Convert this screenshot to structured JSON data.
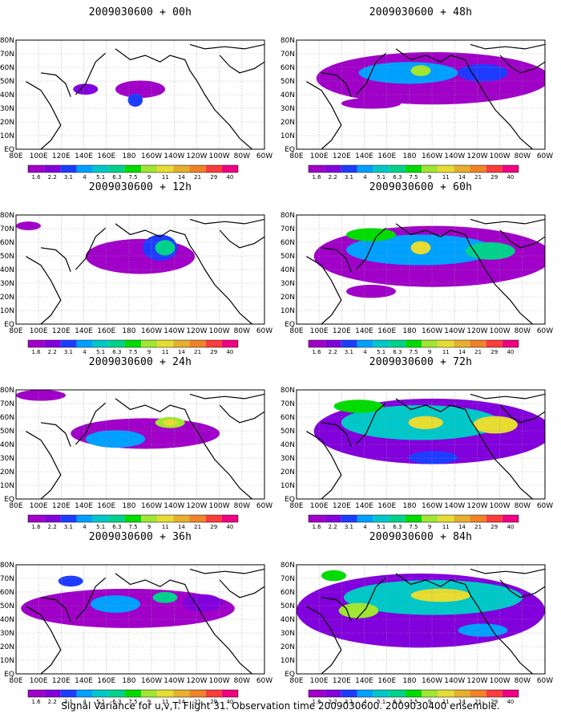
{
  "caption": "Signal Variance for u,v,T. Flight 31. Observation time 2009030600. 2009030400 ensemble.",
  "map_labels": {
    "lat": [
      "EQ",
      "10N",
      "20N",
      "30N",
      "40N",
      "50N",
      "60N",
      "70N",
      "80N"
    ],
    "lon": [
      "80E",
      "100E",
      "120E",
      "140E",
      "160E",
      "180",
      "160W",
      "140W",
      "120W",
      "100W",
      "80W",
      "60W"
    ]
  },
  "colorbar": {
    "colors": [
      "#a000c8",
      "#8200dc",
      "#1e3cff",
      "#00a0ff",
      "#00c8c8",
      "#00d28c",
      "#00dc00",
      "#a0e632",
      "#e6dc32",
      "#e6af2d",
      "#f08228",
      "#fa3c3c",
      "#f00082"
    ],
    "labels": [
      "1.6",
      "2.2",
      "3.1",
      "4",
      "5.1",
      "6.3",
      "7.5",
      "9",
      "11",
      "14",
      "21",
      "29",
      "40"
    ]
  },
  "panels": [
    {
      "title": "2009030600 + 00h",
      "lead": "00h"
    },
    {
      "title": "2009030600 + 48h",
      "lead": "48h"
    },
    {
      "title": "2009030600 + 12h",
      "lead": "12h"
    },
    {
      "title": "2009030600 + 60h",
      "lead": "60h"
    },
    {
      "title": "2009030600 + 24h",
      "lead": "24h"
    },
    {
      "title": "2009030600 + 72h",
      "lead": "72h"
    },
    {
      "title": "2009030600 + 36h",
      "lead": "36h"
    },
    {
      "title": "2009030600 + 84h",
      "lead": "84h"
    }
  ]
}
